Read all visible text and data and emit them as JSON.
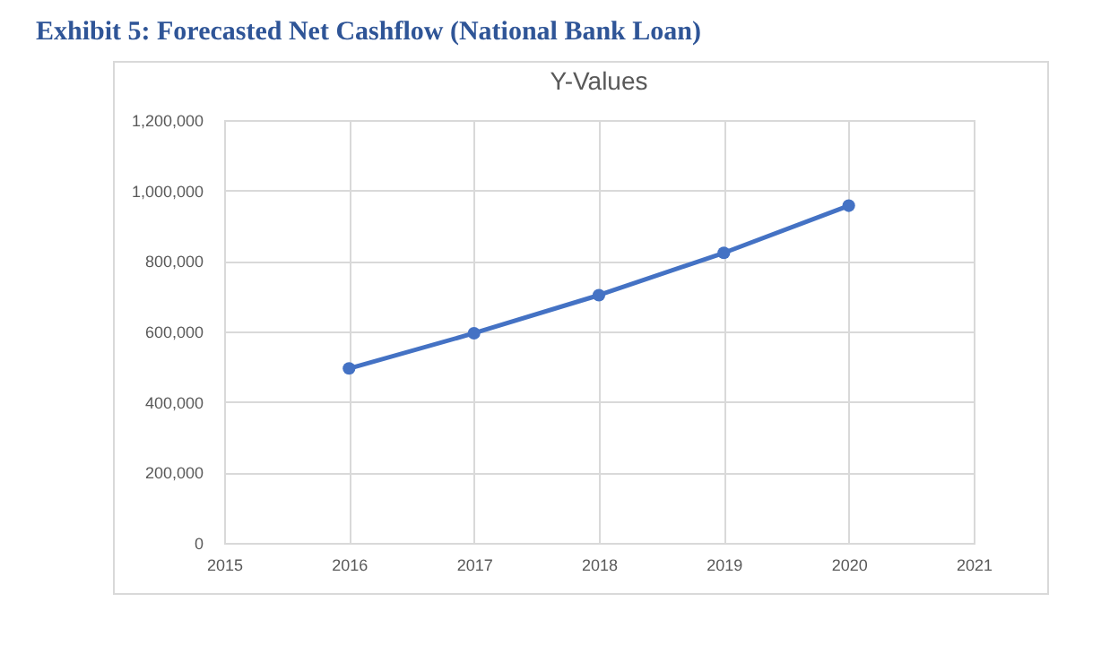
{
  "chart_data": {
    "type": "line",
    "title": "Exhibit 5: Forecasted Net Cashflow (National Bank Loan)",
    "subtitle": "Y-Values",
    "x": [
      2016,
      2017,
      2018,
      2019,
      2020
    ],
    "series": [
      {
        "color": "#4472c4",
        "values": [
          495000,
          595000,
          703000,
          823000,
          957000
        ]
      }
    ],
    "xlim": [
      2015,
      2021
    ],
    "xticks": [
      2015,
      2016,
      2017,
      2018,
      2019,
      2020,
      2021
    ],
    "ylim": [
      0,
      1200000
    ],
    "yticks": [
      0,
      {
        "value": 200000,
        "label": "200,000"
      },
      {
        "value": 400000,
        "label": "400,000"
      },
      {
        "value": 600000,
        "label": "600,000"
      },
      {
        "value": 800000,
        "label": "800,000"
      },
      {
        "value": 1000000,
        "label": "1,000,000"
      },
      {
        "value": 1200000,
        "label": "1,200,000"
      }
    ],
    "grid": true,
    "marker": "circle",
    "line_style": "solid"
  }
}
